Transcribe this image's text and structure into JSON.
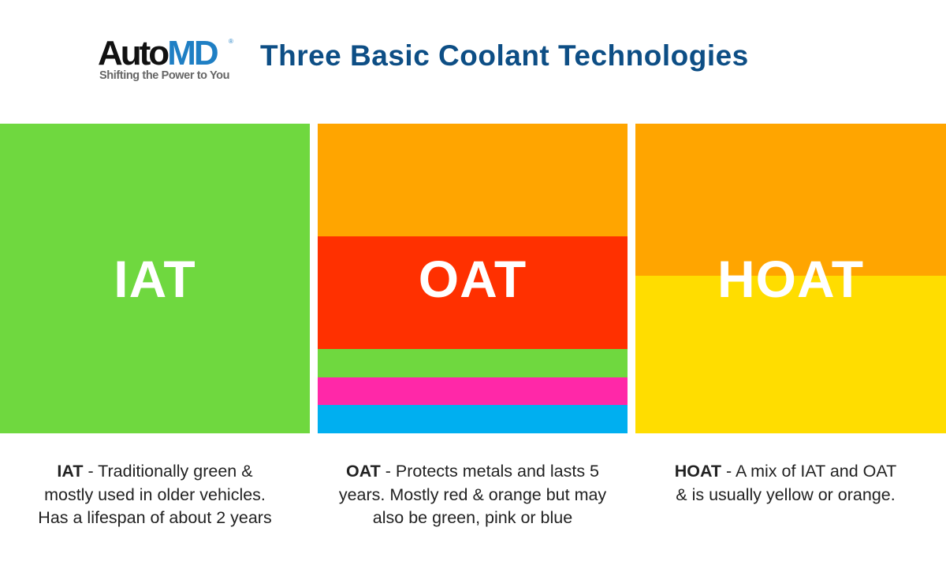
{
  "logo": {
    "brand_part1": "Auto",
    "brand_part2": "MD",
    "registered": "®",
    "tagline": "Shifting the Power to You"
  },
  "title": "Three Basic Coolant Technologies",
  "panels": [
    {
      "label": "IAT",
      "colors": [
        "#6fd83f"
      ],
      "caption_term": "IAT",
      "caption_lines": [
        " - Traditionally green &",
        "mostly used in older vehicles.",
        "Has a lifespan of about 2 years"
      ]
    },
    {
      "label": "OAT",
      "colors": [
        "#ffa500",
        "#ff3000",
        "#6fd83f",
        "#ff28a8",
        "#00aff0"
      ],
      "caption_term": "OAT",
      "caption_lines": [
        " - Protects metals and lasts 5",
        "years. Mostly red & orange but may",
        "also be green, pink or blue"
      ]
    },
    {
      "label": "HOAT",
      "colors": [
        "#ffa500",
        "#ffdd00"
      ],
      "caption_term": "HOAT",
      "caption_lines": [
        " - A mix of IAT and OAT",
        "& is usually yellow or orange.",
        ""
      ]
    }
  ]
}
